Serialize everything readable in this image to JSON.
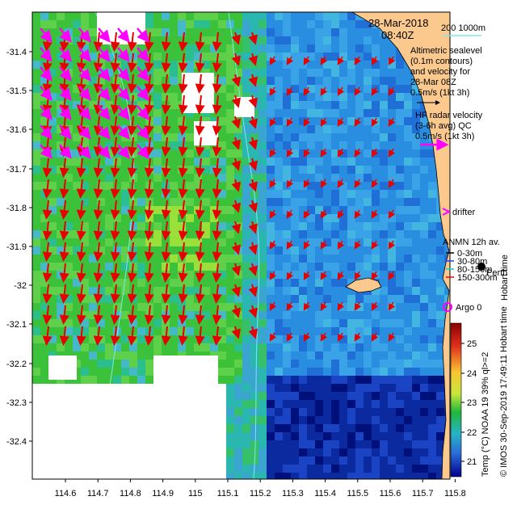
{
  "header": {
    "date": "28-Mar-2018",
    "time": "08:40Z",
    "depth_scale": "200  1000m"
  },
  "legend": {
    "altimetry_lines": [
      "Altimetric sealevel",
      "(0.1m contours)",
      "and velocity for",
      "28-Mar 08Z",
      "0.5m/s (1kt 3h)"
    ],
    "radar_lines": [
      "HF radar velocity",
      "(3-6h avg) QC",
      "0.5m/s (1kt 3h)"
    ],
    "drifter": "drifter",
    "anmn_title": "ANMN 12h av.",
    "anmn_items": [
      {
        "label": "0-30m",
        "color": "#000000"
      },
      {
        "label": "30-80m",
        "color": "#1a3cff"
      },
      {
        "label": "80-150m",
        "color": "#00d0d0"
      },
      {
        "label": "150-300m",
        "color": "#ff0000"
      }
    ],
    "argo": "Argo 0",
    "place": "Perth",
    "place_suffix": "Hobart time"
  },
  "colorbar": {
    "label": "Temp (°C) NOAA 19 39% ql>=2",
    "ticks": [
      "25",
      "24",
      "23",
      "22",
      "21"
    ]
  },
  "credit": "© IMOS 30-Sep-2019 17:49:11 Hobart time",
  "axes": {
    "yticks": [
      "-31.4",
      "-31.5",
      "-31.6",
      "-31.7",
      "-31.8",
      "-31.9",
      "-32",
      "-32.1",
      "-32.2",
      "-32.3",
      "-32.4"
    ],
    "xticks": [
      "114.6",
      "114.7",
      "114.8",
      "114.9",
      "115",
      "115.1",
      "115.2",
      "115.3",
      "115.4",
      "115.5",
      "115.6",
      "115.7",
      "115.8"
    ]
  },
  "colors": {
    "land": "#fbc98e",
    "radar_arrow": "#ff00ff",
    "altimetry_arrow": "#e60000",
    "depth_contour": "#7fe8e8"
  }
}
